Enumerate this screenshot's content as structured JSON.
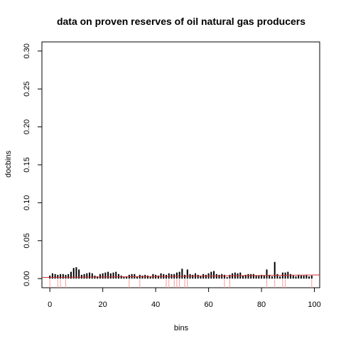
{
  "chart_data": {
    "type": "bar",
    "title": "data on proven reserves of oil natural gas producers",
    "xlabel": "bins",
    "ylabel": "docbins",
    "xlim": [
      -3,
      102
    ],
    "ylim": [
      -0.012,
      0.312
    ],
    "xticks": [
      0,
      20,
      40,
      60,
      80,
      100
    ],
    "yticks": [
      0.0,
      0.05,
      0.1,
      0.15,
      0.2,
      0.25,
      0.3
    ],
    "ytick_labels": [
      "0.00",
      "0.05",
      "0.10",
      "0.15",
      "0.20",
      "0.25",
      "0.30"
    ],
    "grid": false,
    "colors": {
      "bars": "#000000",
      "density": "#cc3333",
      "rug": "#ff9999"
    },
    "x": [
      0,
      1,
      2,
      3,
      4,
      5,
      6,
      7,
      8,
      9,
      10,
      11,
      12,
      13,
      14,
      15,
      16,
      17,
      18,
      19,
      20,
      21,
      22,
      23,
      24,
      25,
      26,
      27,
      28,
      29,
      30,
      31,
      32,
      33,
      34,
      35,
      36,
      37,
      38,
      39,
      40,
      41,
      42,
      43,
      44,
      45,
      46,
      47,
      48,
      49,
      50,
      51,
      52,
      53,
      54,
      55,
      56,
      57,
      58,
      59,
      60,
      61,
      62,
      63,
      64,
      65,
      66,
      67,
      68,
      69,
      70,
      71,
      72,
      73,
      74,
      75,
      76,
      77,
      78,
      79,
      80,
      81,
      82,
      83,
      84,
      85,
      86,
      87,
      88,
      89,
      90,
      91,
      92,
      93,
      94,
      95,
      96,
      97,
      98,
      99
    ],
    "values": [
      0.004,
      0.007,
      0.006,
      0.005,
      0.006,
      0.006,
      0.005,
      0.006,
      0.009,
      0.014,
      0.015,
      0.012,
      0.005,
      0.006,
      0.007,
      0.008,
      0.007,
      0.004,
      0.003,
      0.006,
      0.007,
      0.008,
      0.009,
      0.007,
      0.008,
      0.009,
      0.006,
      0.004,
      0.002,
      0.003,
      0.005,
      0.006,
      0.006,
      0.003,
      0.005,
      0.004,
      0.005,
      0.004,
      0.003,
      0.006,
      0.005,
      0.004,
      0.007,
      0.006,
      0.005,
      0.007,
      0.006,
      0.006,
      0.008,
      0.009,
      0.013,
      0.005,
      0.012,
      0.006,
      0.005,
      0.007,
      0.005,
      0.004,
      0.006,
      0.005,
      0.007,
      0.009,
      0.01,
      0.006,
      0.005,
      0.006,
      0.005,
      0.002,
      0.005,
      0.007,
      0.008,
      0.007,
      0.008,
      0.004,
      0.005,
      0.006,
      0.006,
      0.006,
      0.004,
      0.004,
      0.005,
      0.004,
      0.012,
      0.005,
      0.003,
      0.022,
      0.006,
      0.003,
      0.008,
      0.008,
      0.009,
      0.006,
      0.004,
      0.003,
      0.005,
      0.004,
      0.004,
      0.005,
      0.003,
      0.004
    ],
    "density": {
      "x": [
        -3,
        102
      ],
      "y": [
        0.0015,
        0.0048
      ]
    },
    "rug": [
      0,
      3,
      4,
      6,
      30,
      34,
      44,
      45,
      47,
      48,
      49,
      51,
      52,
      66,
      68,
      82,
      85,
      88,
      89,
      99
    ]
  }
}
